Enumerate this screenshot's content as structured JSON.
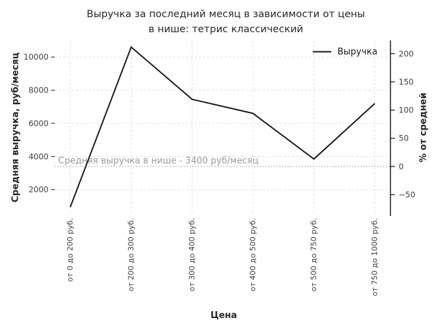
{
  "title": {
    "line1": "Выручка за последний месяц в зависимости от цены",
    "line2": "в нише: тетрис классический"
  },
  "legend": {
    "label": "Выручка",
    "position": "upper right",
    "frame": false
  },
  "annotation": {
    "text": "Средняя выручка в нише - 3400 руб/месяц"
  },
  "colors": {
    "series": "#141414",
    "grid": "#dcdcdc",
    "average_line": "#a8a8a8",
    "annotation_text": "#9b9b9b",
    "tick_mark": "#333333",
    "right_spine": "#1a1a1a",
    "background": "#ffffff"
  },
  "chart_data": {
    "type": "line",
    "title": "Выручка за последний месяц в зависимости от цены в нише: тетрис классический",
    "categories": [
      "от 0 до 200 руб.",
      "от 200 до 300 руб.",
      "от 300 до 400 руб.",
      "от 400 до 500 руб.",
      "от 500 до 750 руб.",
      "от 750 до 1000 руб."
    ],
    "series": [
      {
        "name": "Выручка",
        "values": [
          950,
          10600,
          7450,
          6600,
          3850,
          7200
        ],
        "color": "#141414"
      }
    ],
    "xlabel": "Цена",
    "ylabel_left": "Средняя выручка, руб/месяц",
    "ylabel_right": "% от средней",
    "yticks_left": [
      2000,
      4000,
      6000,
      8000,
      10000
    ],
    "yticks_right": [
      -50,
      0,
      50,
      100,
      150,
      200
    ],
    "ylim_left": [
      500,
      11000
    ],
    "ylim_right": [
      -85,
      224
    ],
    "average_line": {
      "value": 3400,
      "label": "Средняя выручка в нише - 3400 руб/месяц",
      "style": "dotted"
    },
    "values_percent_of_average": [
      -72,
      212,
      119,
      94,
      13,
      112
    ],
    "grid": true,
    "grid_style": "dashed",
    "legend_position": "upper right"
  }
}
